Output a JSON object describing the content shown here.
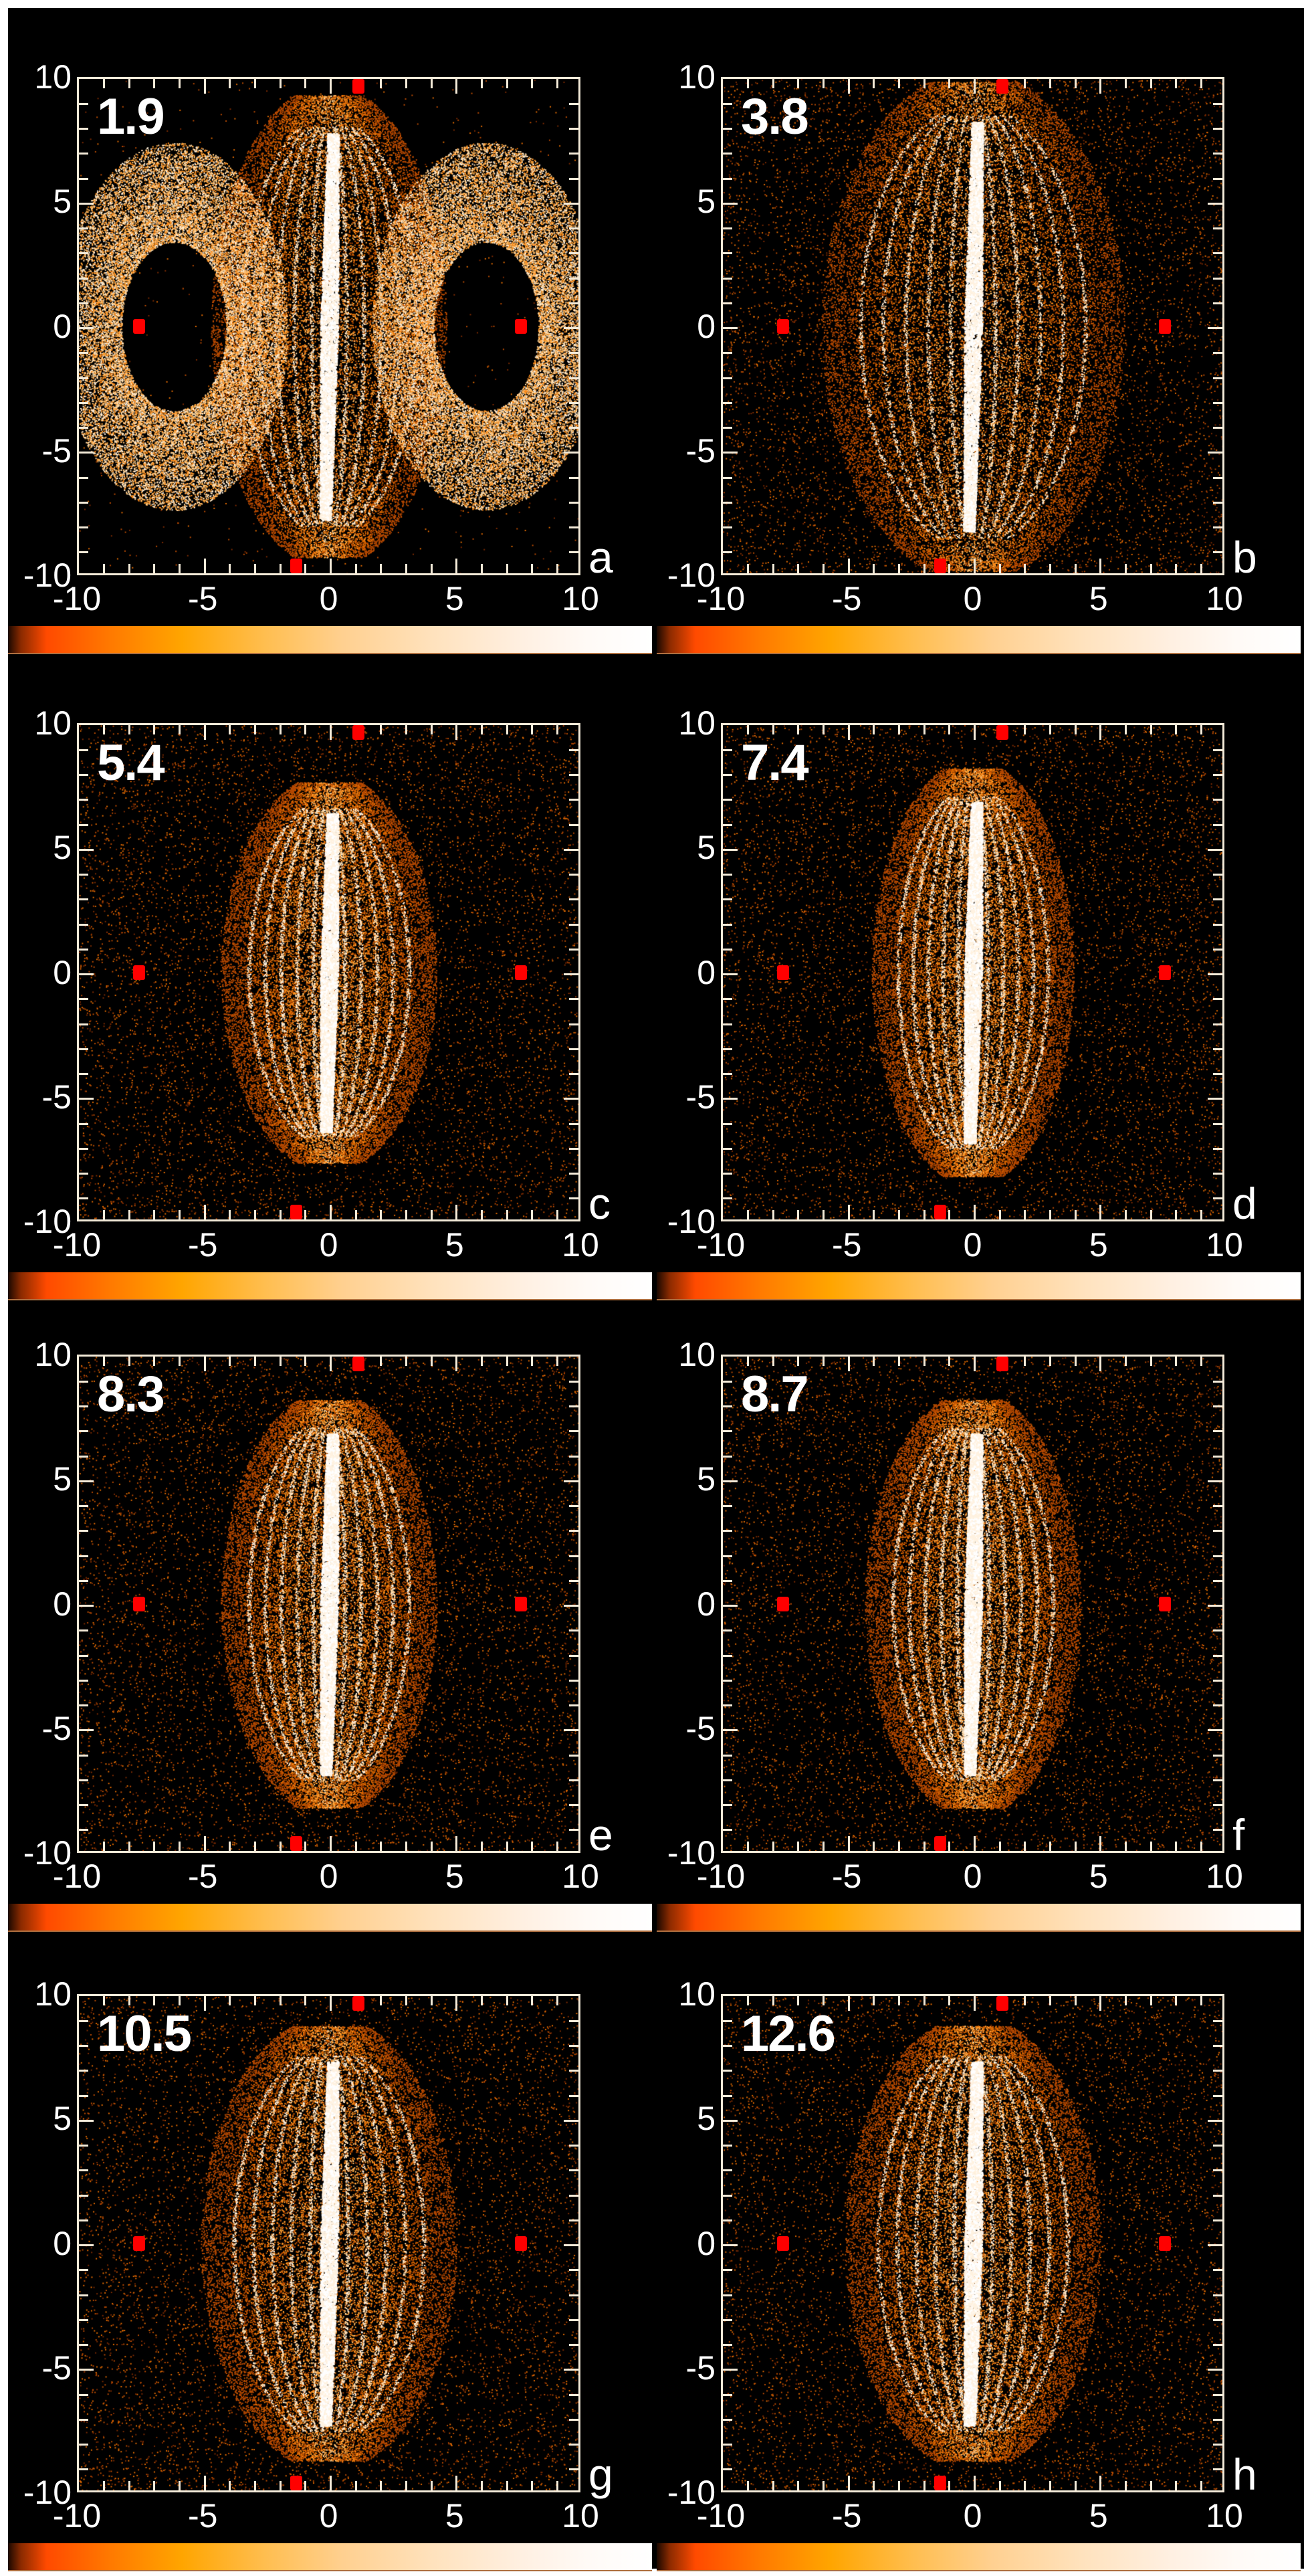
{
  "figure": {
    "background": "#000000",
    "frame_color": "#f3ead8",
    "marker_color": "#ff0000",
    "colorbar_stops": [
      "#1a0800",
      "#ff4a00",
      "#ffa500",
      "#ffd090",
      "#ffffff"
    ]
  },
  "axes": {
    "x_ticks": [
      "-10",
      "-5",
      "0",
      "5",
      "10"
    ],
    "y_ticks": [
      "10",
      "5",
      "0",
      "-5",
      "-10"
    ],
    "range": [
      -10,
      10
    ]
  },
  "panels": [
    {
      "letter": "a",
      "time": "1.9"
    },
    {
      "letter": "b",
      "time": "3.8"
    },
    {
      "letter": "c",
      "time": "5.4"
    },
    {
      "letter": "d",
      "time": "7.4"
    },
    {
      "letter": "e",
      "time": "8.3"
    },
    {
      "letter": "f",
      "time": "8.7"
    },
    {
      "letter": "g",
      "time": "10.5"
    },
    {
      "letter": "h",
      "time": "12.6"
    }
  ],
  "chart_data": {
    "type": "scatter",
    "title": "",
    "xlabel": "",
    "ylabel": "",
    "xlim": [
      -10,
      10
    ],
    "ylim": [
      -10,
      10
    ],
    "grid": false,
    "layout": "4 rows x 2 columns of density scatter panels, each with a horizontal colorbar beneath",
    "colorbar": {
      "orientation": "horizontal",
      "colormap": "black-red-orange-white (hot)",
      "labels": []
    },
    "reference_markers": [
      {
        "x": -7.6,
        "y": 0.0
      },
      {
        "x": 7.7,
        "y": 0.0
      },
      {
        "x": 1.2,
        "y": 9.7
      },
      {
        "x": -1.3,
        "y": -9.7
      }
    ],
    "series": [
      {
        "name": "a",
        "time": 1.9,
        "description": "two side vortex lobes around (-7.6,0) and (7.7,0) plus central elliptical core",
        "core_halfwidth": 3.5,
        "core_halfheight": 8.5,
        "lobes": true
      },
      {
        "name": "b",
        "time": 3.8,
        "description": "central filamentary lens, diffuse background",
        "core_halfwidth": 4.5,
        "core_halfheight": 9.0,
        "lobes": false
      },
      {
        "name": "c",
        "time": 5.4,
        "description": "vertical bright spindle with lens shells",
        "core_halfwidth": 3.2,
        "core_halfheight": 7.0,
        "lobes": false
      },
      {
        "name": "d",
        "time": 7.4,
        "description": "vertical bright spindle",
        "core_halfwidth": 3.0,
        "core_halfheight": 7.5,
        "lobes": false
      },
      {
        "name": "e",
        "time": 8.3,
        "description": "vertical bright spindle",
        "core_halfwidth": 3.2,
        "core_halfheight": 7.5,
        "lobes": false
      },
      {
        "name": "f",
        "time": 8.7,
        "description": "vertical bright spindle",
        "core_halfwidth": 3.2,
        "core_halfheight": 7.5,
        "lobes": false
      },
      {
        "name": "g",
        "time": 10.5,
        "description": "vertical bright spindle, broader halo",
        "core_halfwidth": 3.8,
        "core_halfheight": 8.0,
        "lobes": false
      },
      {
        "name": "h",
        "time": 12.6,
        "description": "vertical bright spindle, broader halo",
        "core_halfwidth": 3.8,
        "core_halfheight": 8.0,
        "lobes": false
      }
    ]
  }
}
